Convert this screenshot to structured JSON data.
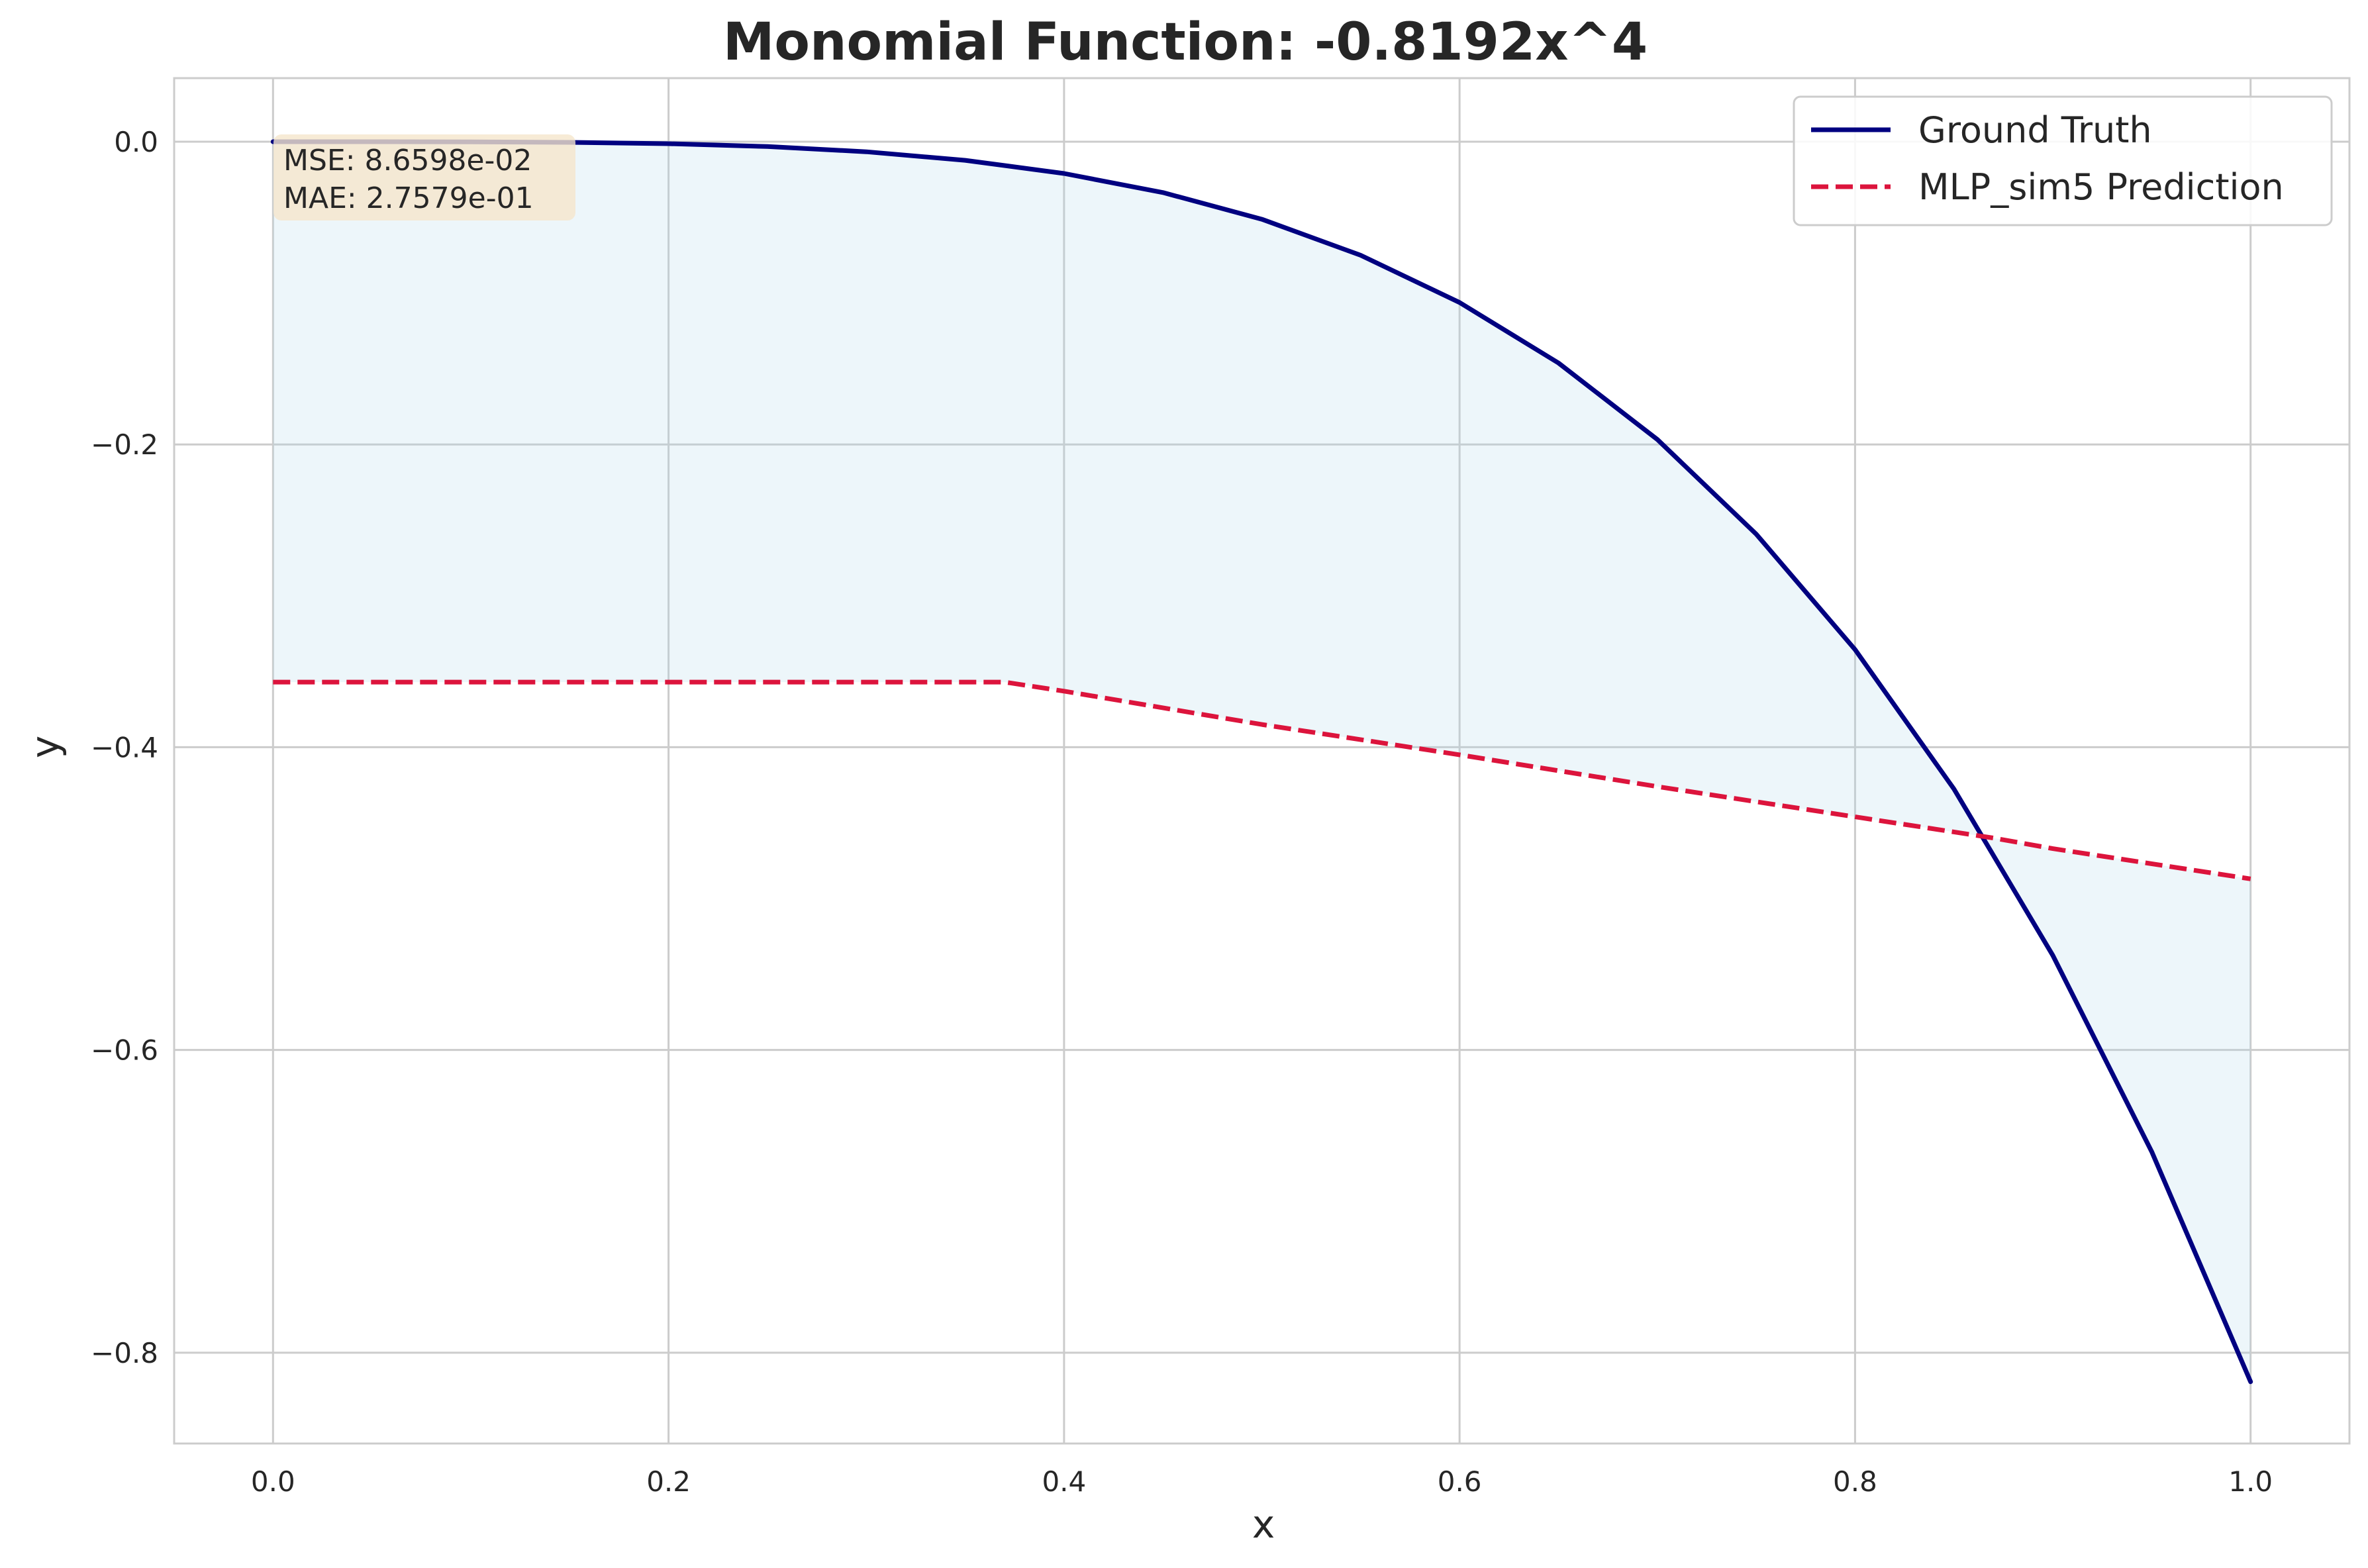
{
  "chart_data": {
    "type": "line",
    "title": "Monomial Function: -0.8192x^4",
    "xlabel": "x",
    "ylabel": "y",
    "xlim": [
      -0.05,
      1.05
    ],
    "ylim": [
      -0.86,
      0.042
    ],
    "xticks": [
      0.0,
      0.2,
      0.4,
      0.6,
      0.8,
      1.0
    ],
    "xtick_labels": [
      "0.0",
      "0.2",
      "0.4",
      "0.6",
      "0.8",
      "1.0"
    ],
    "yticks": [
      0.0,
      -0.2,
      -0.4,
      -0.6,
      -0.8
    ],
    "ytick_labels": [
      "0.0",
      "−0.2",
      "−0.4",
      "−0.6",
      "−0.8"
    ],
    "grid": true,
    "legend_position": "top-right",
    "fill_between": true,
    "fill_color": "#add8e6",
    "series": [
      {
        "name": "Ground Truth",
        "style": "solid",
        "color": "#000080",
        "x": [
          0.0,
          0.05,
          0.1,
          0.15,
          0.2,
          0.25,
          0.3,
          0.35,
          0.4,
          0.45,
          0.5,
          0.55,
          0.6,
          0.65,
          0.7,
          0.75,
          0.8,
          0.85,
          0.9,
          0.95,
          1.0
        ],
        "y": [
          0.0,
          -5.1e-06,
          -8.19e-05,
          -0.000415,
          -0.00131,
          -0.0032,
          -0.00664,
          -0.0123,
          -0.021,
          -0.0336,
          -0.0512,
          -0.075,
          -0.1062,
          -0.1462,
          -0.1967,
          -0.2592,
          -0.3355,
          -0.4276,
          -0.5375,
          -0.6672,
          -0.8192
        ]
      },
      {
        "name": "MLP_sim5 Prediction",
        "style": "dashed",
        "color": "#dc143c",
        "x": [
          0.0,
          0.1,
          0.2,
          0.3,
          0.37,
          0.4,
          0.5,
          0.6,
          0.7,
          0.8,
          0.87,
          0.9,
          1.0
        ],
        "y": [
          -0.357,
          -0.357,
          -0.357,
          -0.357,
          -0.357,
          -0.363,
          -0.385,
          -0.405,
          -0.426,
          -0.446,
          -0.46,
          -0.467,
          -0.487
        ]
      }
    ],
    "annotations": {
      "mse": "MSE: 8.6598e-02",
      "mae": "MAE: 2.7579e-01",
      "box_color": "#f5e6cc"
    }
  }
}
